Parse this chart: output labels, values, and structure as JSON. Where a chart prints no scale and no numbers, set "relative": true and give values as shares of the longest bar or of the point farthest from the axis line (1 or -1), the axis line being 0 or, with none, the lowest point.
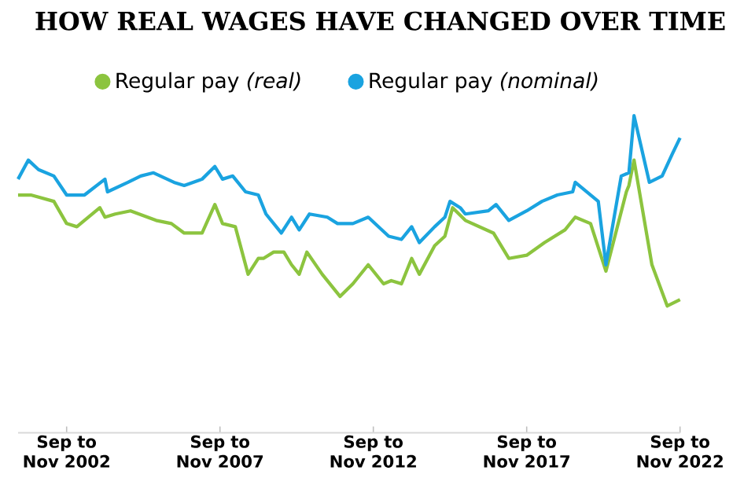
{
  "chart_data": {
    "type": "line",
    "title": "HOW REAL WAGES HAVE CHANGED OVER TIME",
    "relative": true,
    "legend": "top",
    "xlim": [
      "2001-03",
      "2022-10"
    ],
    "xticks": [
      {
        "value": "2002-10",
        "label": "Sep to Nov 2002"
      },
      {
        "value": "2007-10",
        "label": "Sep to Nov 2007"
      },
      {
        "value": "2012-10",
        "label": "Sep to Nov 2012"
      },
      {
        "value": "2017-10",
        "label": "Sep to Nov 2017"
      },
      {
        "value": "2022-10",
        "label": "Sep to Nov 2022"
      }
    ],
    "series": [
      {
        "name": "Regular pay *(real)*",
        "color": "#8cc43f",
        "x": [
          "2001-03",
          "2001-08",
          "2002-05",
          "2002-10",
          "2003-02",
          "2003-11",
          "2004-01",
          "2004-05",
          "2004-11",
          "2005-09",
          "2006-03",
          "2006-08",
          "2007-03",
          "2007-08",
          "2007-11",
          "2008-04",
          "2008-09",
          "2009-01",
          "2009-03",
          "2009-07",
          "2009-11",
          "2010-02",
          "2010-05",
          "2010-08",
          "2011-02",
          "2011-09",
          "2012-02",
          "2012-08",
          "2013-02",
          "2013-05",
          "2013-09",
          "2014-01",
          "2014-04",
          "2014-10",
          "2015-02",
          "2015-05",
          "2015-10",
          "2016-09",
          "2017-03",
          "2017-10",
          "2018-05",
          "2019-01",
          "2019-05",
          "2019-11",
          "2020-05",
          "2021-01",
          "2021-02",
          "2021-04",
          "2021-11",
          "2022-05",
          "2022-10"
        ],
        "values": [
          0.75,
          0.75,
          0.73,
          0.66,
          0.65,
          0.71,
          0.68,
          0.69,
          0.7,
          0.67,
          0.66,
          0.63,
          0.63,
          0.72,
          0.66,
          0.65,
          0.5,
          0.55,
          0.55,
          0.57,
          0.57,
          0.53,
          0.5,
          0.57,
          0.5,
          0.43,
          0.47,
          0.53,
          0.47,
          0.48,
          0.47,
          0.55,
          0.5,
          0.59,
          0.62,
          0.71,
          0.67,
          0.63,
          0.55,
          0.56,
          0.6,
          0.64,
          0.68,
          0.66,
          0.51,
          0.76,
          0.78,
          0.86,
          0.53,
          0.4,
          0.42
        ]
      },
      {
        "name": "Regular pay *(nominal)*",
        "color": "#1aa3e0",
        "x": [
          "2001-03",
          "2001-07",
          "2001-11",
          "2002-05",
          "2002-10",
          "2003-05",
          "2004-01",
          "2004-02",
          "2004-10",
          "2005-03",
          "2005-08",
          "2006-04",
          "2006-08",
          "2007-03",
          "2007-08",
          "2007-11",
          "2008-03",
          "2008-08",
          "2009-01",
          "2009-04",
          "2009-10",
          "2010-02",
          "2010-05",
          "2010-09",
          "2011-04",
          "2011-08",
          "2012-02",
          "2012-08",
          "2013-04",
          "2013-09",
          "2014-01",
          "2014-04",
          "2014-10",
          "2015-02",
          "2015-04",
          "2015-08",
          "2015-10",
          "2016-07",
          "2016-10",
          "2017-03",
          "2017-10",
          "2018-04",
          "2018-10",
          "2019-04",
          "2019-05",
          "2020-02",
          "2020-05",
          "2020-11",
          "2021-02",
          "2021-04",
          "2021-10",
          "2022-03",
          "2022-07",
          "2022-10"
        ],
        "values": [
          0.8,
          0.86,
          0.83,
          0.81,
          0.75,
          0.75,
          0.8,
          0.76,
          0.79,
          0.81,
          0.82,
          0.79,
          0.78,
          0.8,
          0.84,
          0.8,
          0.81,
          0.76,
          0.75,
          0.69,
          0.63,
          0.68,
          0.64,
          0.69,
          0.68,
          0.66,
          0.66,
          0.68,
          0.62,
          0.61,
          0.65,
          0.6,
          0.65,
          0.68,
          0.73,
          0.71,
          0.69,
          0.7,
          0.72,
          0.67,
          0.7,
          0.73,
          0.75,
          0.76,
          0.79,
          0.73,
          0.53,
          0.81,
          0.82,
          1.0,
          0.79,
          0.81,
          0.88,
          0.93
        ]
      }
    ]
  }
}
